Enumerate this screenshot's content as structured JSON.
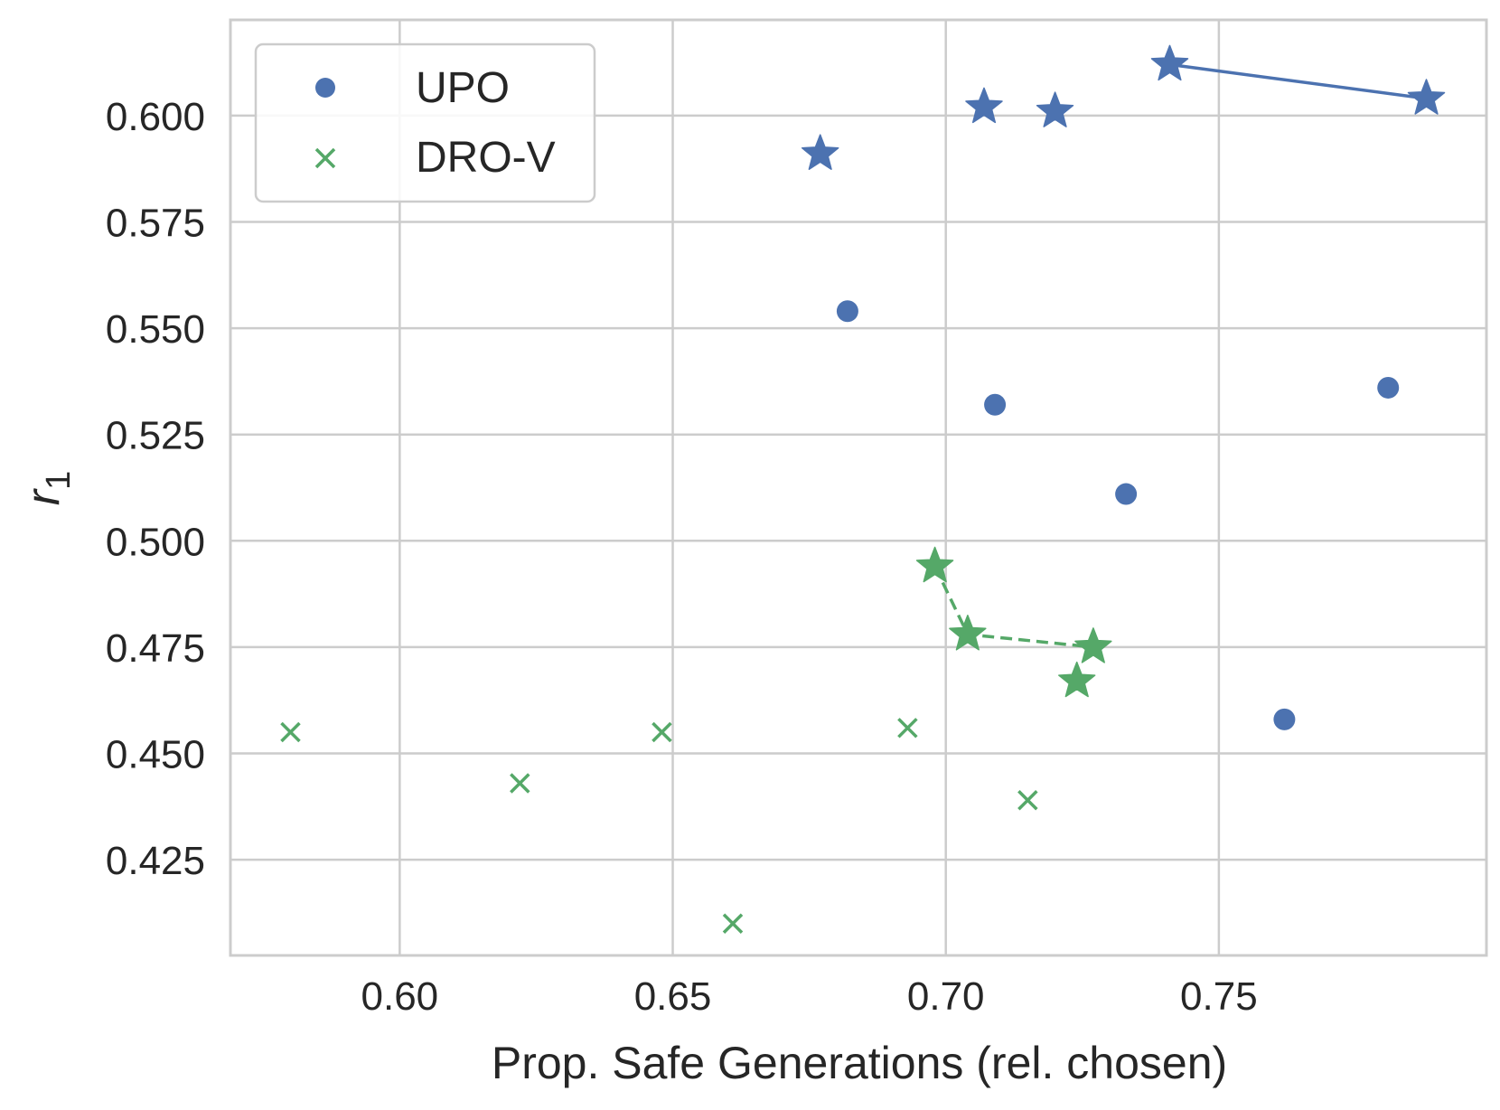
{
  "chart_data": {
    "type": "scatter",
    "title": "",
    "xlabel": "Prop. Safe Generations (rel. chosen)",
    "ylabel_main": "r",
    "ylabel_sub": "1",
    "xlim": [
      0.569,
      0.799
    ],
    "ylim": [
      0.4025,
      0.6225
    ],
    "xticks": [
      0.6,
      0.65,
      0.7,
      0.75
    ],
    "xtick_labels": [
      "0.60",
      "0.65",
      "0.70",
      "0.75"
    ],
    "yticks": [
      0.425,
      0.45,
      0.475,
      0.5,
      0.525,
      0.55,
      0.575,
      0.6
    ],
    "ytick_labels": [
      "0.425",
      "0.450",
      "0.475",
      "0.500",
      "0.525",
      "0.550",
      "0.575",
      "0.600"
    ],
    "grid": true,
    "legend_position": "top-left",
    "series": [
      {
        "name": "UPO",
        "color": "#4c72b0",
        "marker": "circle",
        "points": [
          {
            "x": 0.682,
            "y": 0.554
          },
          {
            "x": 0.709,
            "y": 0.532
          },
          {
            "x": 0.733,
            "y": 0.511
          },
          {
            "x": 0.762,
            "y": 0.458
          },
          {
            "x": 0.781,
            "y": 0.536
          }
        ],
        "pareto_marker": "star",
        "pareto_points": [
          {
            "x": 0.677,
            "y": 0.591
          },
          {
            "x": 0.707,
            "y": 0.602
          },
          {
            "x": 0.72,
            "y": 0.601
          },
          {
            "x": 0.741,
            "y": 0.612
          },
          {
            "x": 0.788,
            "y": 0.604
          }
        ],
        "front_line": [
          {
            "x": 0.741,
            "y": 0.612
          },
          {
            "x": 0.788,
            "y": 0.604
          }
        ],
        "front_style": "solid"
      },
      {
        "name": "DRO-V",
        "color": "#55a868",
        "marker": "x",
        "points": [
          {
            "x": 0.58,
            "y": 0.455
          },
          {
            "x": 0.622,
            "y": 0.443
          },
          {
            "x": 0.648,
            "y": 0.455
          },
          {
            "x": 0.661,
            "y": 0.41
          },
          {
            "x": 0.693,
            "y": 0.456
          },
          {
            "x": 0.715,
            "y": 0.439
          }
        ],
        "pareto_marker": "star",
        "pareto_points": [
          {
            "x": 0.698,
            "y": 0.494
          },
          {
            "x": 0.704,
            "y": 0.478
          },
          {
            "x": 0.724,
            "y": 0.467
          },
          {
            "x": 0.727,
            "y": 0.475
          }
        ],
        "front_line": [
          {
            "x": 0.698,
            "y": 0.494
          },
          {
            "x": 0.704,
            "y": 0.478
          },
          {
            "x": 0.727,
            "y": 0.475
          }
        ],
        "front_style": "dashed"
      }
    ]
  }
}
